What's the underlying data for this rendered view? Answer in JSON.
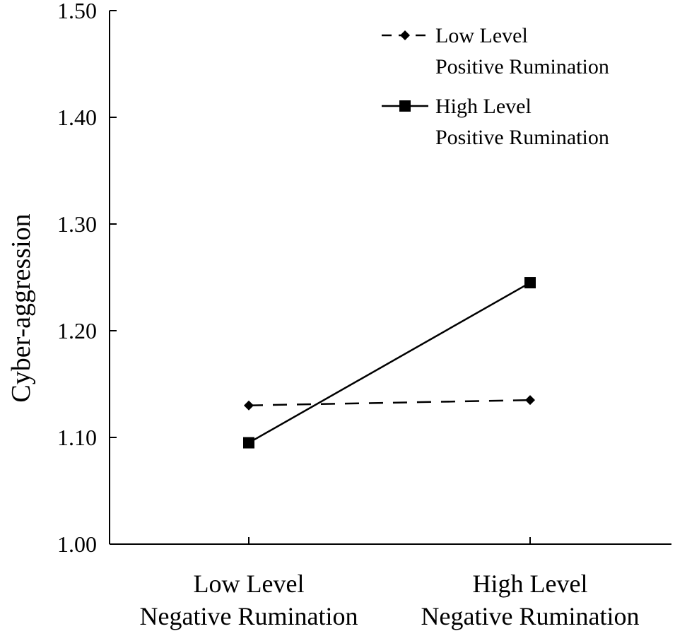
{
  "chart_data": {
    "type": "line",
    "title": "",
    "xlabel": "",
    "ylabel": "Cyber-aggression",
    "ylim": [
      1.0,
      1.5
    ],
    "yticks": [
      "1.00",
      "1.10",
      "1.20",
      "1.30",
      "1.40",
      "1.50"
    ],
    "categories": [
      [
        "Low Level",
        "Negative Rumination"
      ],
      [
        "High Level",
        "Negative Rumination"
      ]
    ],
    "series": [
      {
        "name": "Low Level Positive Rumination",
        "legend_lines": [
          "Low Level",
          "Positive Rumination"
        ],
        "values": [
          1.13,
          1.135
        ],
        "marker": "diamond",
        "dashed": true
      },
      {
        "name": "High Level Positive Rumination",
        "legend_lines": [
          "High Level",
          "Positive Rumination"
        ],
        "values": [
          1.095,
          1.245
        ],
        "marker": "square",
        "dashed": false
      }
    ],
    "legend_position": "top-right",
    "grid": false
  }
}
